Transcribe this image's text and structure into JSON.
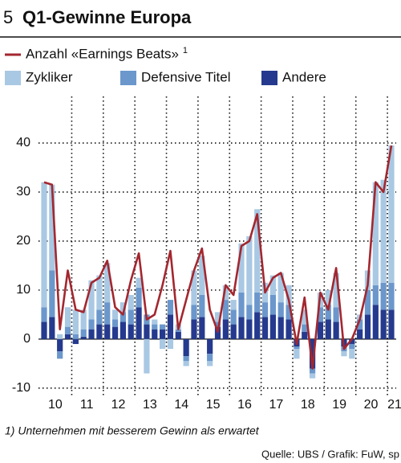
{
  "chart_data": {
    "type": "bar_line",
    "chart_number": "5",
    "title": "Q1-Gewinne Europa",
    "line_footnote_mark": "1",
    "footnote": "1) Unternehmen mit besserem Gewinn als erwartet",
    "source": "Quelle: UBS / Grafik: FuW, sp",
    "categories": [
      null,
      "10",
      null,
      null,
      null,
      "11",
      null,
      null,
      null,
      "12",
      null,
      null,
      null,
      "13",
      null,
      null,
      null,
      "14",
      null,
      null,
      null,
      "15",
      null,
      null,
      null,
      "16",
      null,
      null,
      null,
      "17",
      null,
      null,
      null,
      "18",
      null,
      null,
      null,
      "19",
      null,
      null,
      null,
      "20",
      null,
      null,
      "21"
    ],
    "series": [
      {
        "name": "Anzahl «Earnings Beats»",
        "kind": "line",
        "color": "#a3272f",
        "values": [
          32,
          31.5,
          2,
          14,
          6,
          5.5,
          11.5,
          12.5,
          16,
          6.5,
          5,
          12,
          17.5,
          4,
          5,
          11,
          18,
          2,
          8,
          14,
          18.5,
          6,
          1.5,
          11,
          9,
          19,
          20,
          25.5,
          9.5,
          12.5,
          13.5,
          8,
          -1,
          8.5,
          -6,
          9.5,
          6,
          14.5,
          -2,
          0,
          4,
          11,
          32,
          30,
          39.5
        ]
      },
      {
        "name": "Zykliker",
        "kind": "bar",
        "color": "#a9c8e3",
        "values": [
          25.5,
          17.5,
          1,
          4,
          5,
          4,
          8,
          7,
          8,
          2,
          2,
          3,
          2,
          -7,
          1,
          -2,
          -2,
          1,
          -1,
          7,
          8,
          -1,
          2,
          3,
          2,
          10,
          14,
          17,
          4,
          4,
          6,
          4,
          -2,
          3,
          -1,
          3,
          3,
          7,
          -1,
          -2,
          1,
          4,
          21,
          21,
          28
        ]
      },
      {
        "name": "Defensive Titel",
        "kind": "bar",
        "color": "#6b97cc",
        "values": [
          3,
          9.5,
          -1.5,
          1.5,
          1,
          1.5,
          2,
          3,
          4.5,
          1.5,
          2,
          3,
          4,
          2,
          1,
          1,
          3,
          0.5,
          -1,
          3,
          4.5,
          -1.5,
          1,
          4,
          3,
          5,
          3,
          4,
          3,
          4,
          3,
          3,
          -0.5,
          1.5,
          -1,
          3,
          3,
          3,
          -1,
          -1,
          2,
          5,
          4,
          5.5,
          5.5
        ]
      },
      {
        "name": "Andere",
        "kind": "bar",
        "color": "#253a8e",
        "values": [
          3.5,
          4.5,
          -2.5,
          1,
          -1,
          0.5,
          2,
          3,
          3,
          2.5,
          3.5,
          3,
          6.5,
          3,
          2,
          2,
          5,
          1.5,
          -3.5,
          4,
          4.5,
          -3,
          2.5,
          4,
          3,
          4.5,
          4,
          5.5,
          4.5,
          5,
          4.5,
          4,
          -1.5,
          1.5,
          -6,
          3.5,
          4,
          3.5,
          -1.5,
          -1,
          2,
          5,
          7,
          6,
          6
        ]
      }
    ],
    "ylim": [
      -11.5,
      49.5
    ],
    "yticks": [
      -10,
      0,
      10,
      20,
      30,
      40
    ],
    "grid": true
  }
}
